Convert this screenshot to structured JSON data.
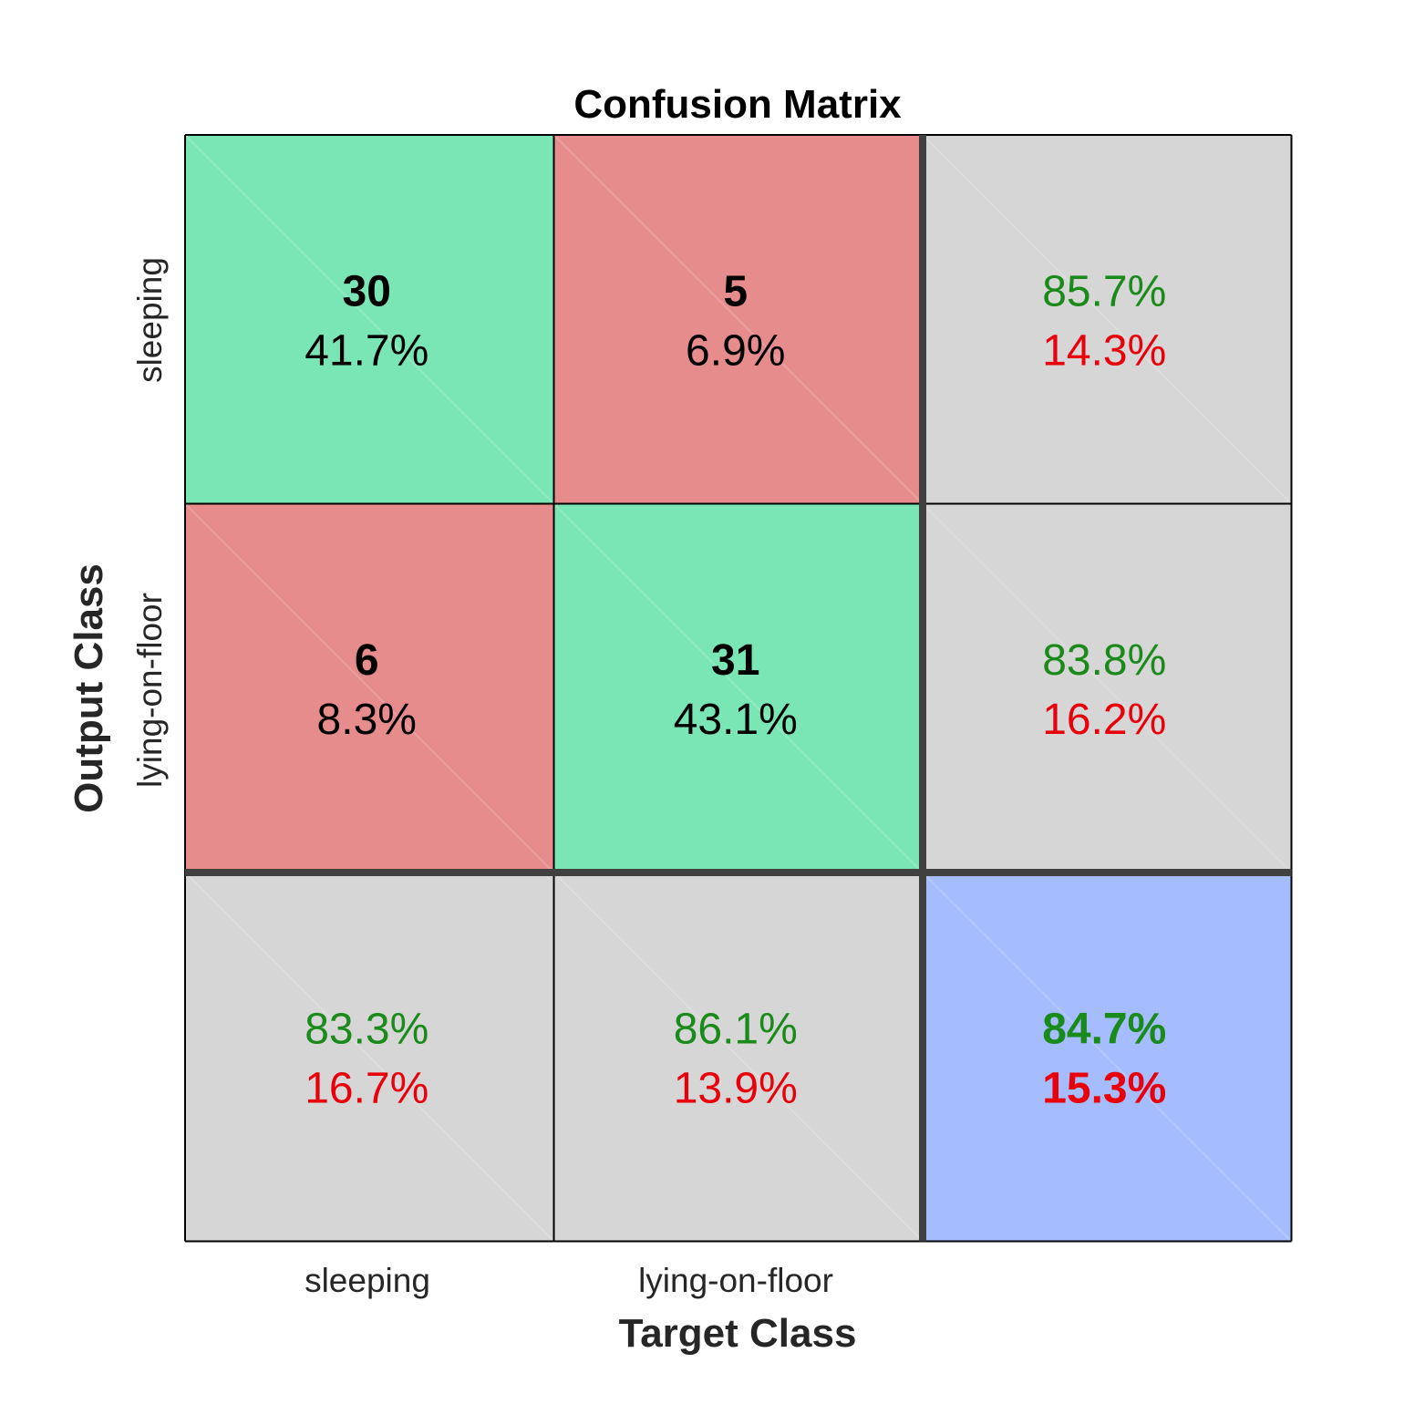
{
  "chart_data": {
    "type": "heatmap",
    "title": "Confusion Matrix",
    "xlabel": "Target Class",
    "ylabel": "Output Class",
    "classes": [
      "sleeping",
      "lying-on-floor"
    ],
    "counts": [
      [
        30,
        5
      ],
      [
        6,
        31
      ]
    ],
    "cell_percents": [
      [
        "41.7%",
        "6.9%"
      ],
      [
        "8.3%",
        "43.1%"
      ]
    ],
    "row_summary": [
      {
        "correct": "85.7%",
        "incorrect": "14.3%"
      },
      {
        "correct": "83.8%",
        "incorrect": "16.2%"
      }
    ],
    "col_summary": [
      {
        "correct": "83.3%",
        "incorrect": "16.7%"
      },
      {
        "correct": "86.1%",
        "incorrect": "13.9%"
      }
    ],
    "overall": {
      "correct": "84.7%",
      "incorrect": "15.3%"
    },
    "colors": {
      "correct_cell": "#7be6b5",
      "incorrect_cell": "#e68c8c",
      "summary_cell": "#d6d6d6",
      "overall_cell": "#a5bcff",
      "correct_text": "#1a8a1a",
      "incorrect_text": "#e8000b",
      "count_text": "#000000",
      "grid_line": "#000000",
      "separator_line": "#404040"
    }
  }
}
